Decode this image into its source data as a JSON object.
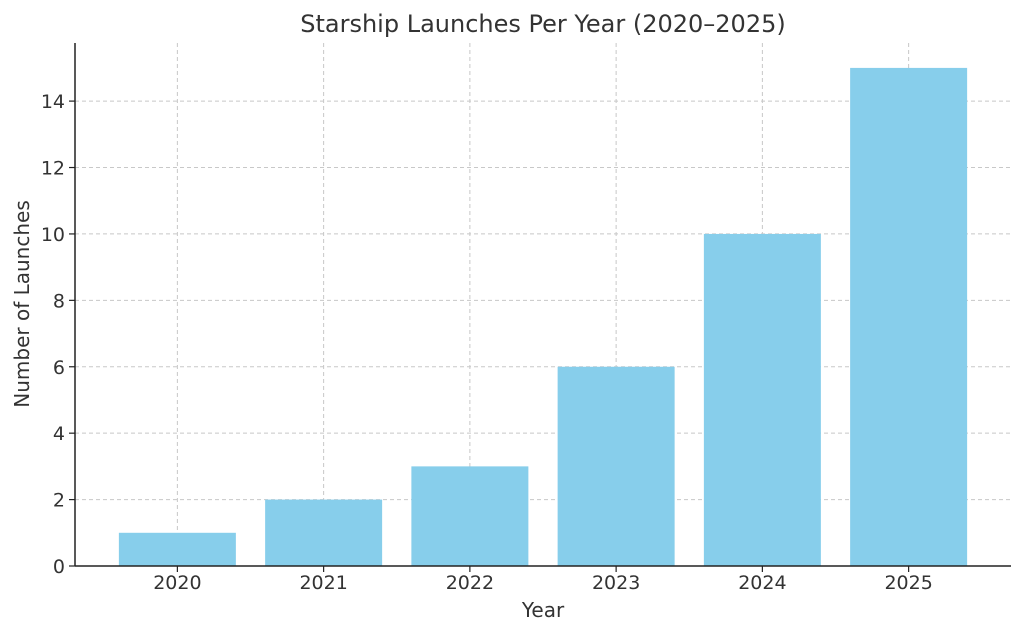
{
  "chart_data": {
    "type": "bar",
    "title": "Starship Launches Per Year (2020–2025)",
    "xlabel": "Year",
    "ylabel": "Number of Launches",
    "categories": [
      "2020",
      "2021",
      "2022",
      "2023",
      "2024",
      "2025"
    ],
    "values": [
      1,
      2,
      3,
      6,
      10,
      15
    ],
    "ylim": [
      0,
      15.75
    ],
    "yticks": [
      0,
      2,
      4,
      6,
      8,
      10,
      12,
      14
    ],
    "grid": true,
    "legend": "none",
    "colors": {
      "bar": "#87ceeb",
      "grid": "#c8c8c8",
      "axis": "#222222",
      "text": "#333333"
    }
  }
}
